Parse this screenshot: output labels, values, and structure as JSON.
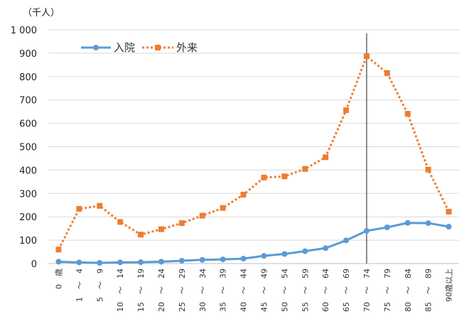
{
  "chart_data": {
    "type": "line",
    "unit_label": "（千人）",
    "categories": [
      "0　歳",
      "1　〜　4",
      "5　〜　9",
      "10　〜　14",
      "15　〜　19",
      "20　〜　24",
      "25　〜　29",
      "30　〜　34",
      "35　〜　39",
      "40　〜　44",
      "45　〜　49",
      "50　〜　54",
      "55　〜　59",
      "60　〜　64",
      "65　〜　69",
      "70　〜　74",
      "75　〜　79",
      "80　〜　84",
      "85　〜　89",
      "90歳以上"
    ],
    "series": [
      {
        "name": "入院",
        "color": "#5b9bd5",
        "style": "solid",
        "values": [
          8,
          5,
          3,
          5,
          6,
          8,
          12,
          16,
          18,
          21,
          33,
          41,
          53,
          66,
          99,
          140,
          155,
          174,
          173,
          158
        ]
      },
      {
        "name": "外来",
        "color": "#ed7d31",
        "style": "dotted",
        "values": [
          60,
          234,
          247,
          178,
          124,
          147,
          173,
          205,
          238,
          295,
          368,
          373,
          405,
          455,
          656,
          887,
          815,
          641,
          402,
          222
        ]
      }
    ],
    "ylim": [
      0,
      1000
    ],
    "yticks": [
      0,
      100,
      200,
      300,
      400,
      500,
      600,
      700,
      800,
      900,
      1000
    ],
    "ytick_labels": [
      "0",
      "100",
      "200",
      "300",
      "400",
      "500",
      "600",
      "700",
      "800",
      "900",
      "1 000"
    ],
    "grid": true,
    "legend_position": "top-left",
    "marker_category": "70　〜　74"
  }
}
